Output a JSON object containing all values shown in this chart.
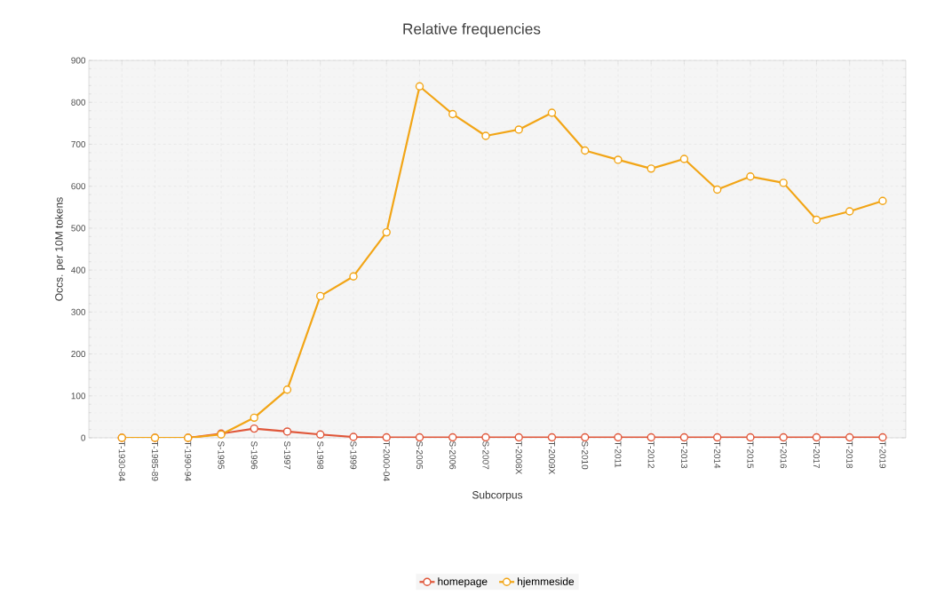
{
  "chart_data": {
    "type": "line",
    "title": "Relative frequencies",
    "xlabel": "Subcorpus",
    "ylabel": "Occs. per 10M tokens",
    "categories": [
      "T-1930-84",
      "T-1985-89",
      "T-1990-94",
      "S-1995",
      "S-1996",
      "S-1997",
      "S-1998",
      "S-1999",
      "T-2000-04",
      "S-2005",
      "S-2006",
      "S-2007",
      "T-2008X",
      "T-2009X",
      "S-2010",
      "T-2011",
      "T-2012",
      "T-2013",
      "T-2014",
      "T-2015",
      "T-2016",
      "T-2017",
      "T-2018",
      "T-2019"
    ],
    "series": [
      {
        "name": "homepage",
        "color": "#e0573a",
        "values": [
          0,
          0,
          0,
          10,
          22,
          15,
          8,
          2,
          1,
          1,
          1,
          1,
          1,
          1,
          1,
          1,
          1,
          1,
          1,
          1,
          1,
          1,
          1,
          1
        ]
      },
      {
        "name": "hjemmeside",
        "color": "#f2a516",
        "values": [
          0,
          0,
          0,
          8,
          48,
          115,
          338,
          385,
          490,
          838,
          772,
          720,
          735,
          775,
          685,
          663,
          642,
          665,
          592,
          623,
          608,
          520,
          540,
          565
        ]
      }
    ],
    "ylim": [
      0,
      900
    ],
    "yticks": [
      0,
      100,
      200,
      300,
      400,
      500,
      600,
      700,
      800,
      900
    ],
    "grid": true,
    "legend": "bottom",
    "marker": "circle",
    "line_style": "solid"
  }
}
